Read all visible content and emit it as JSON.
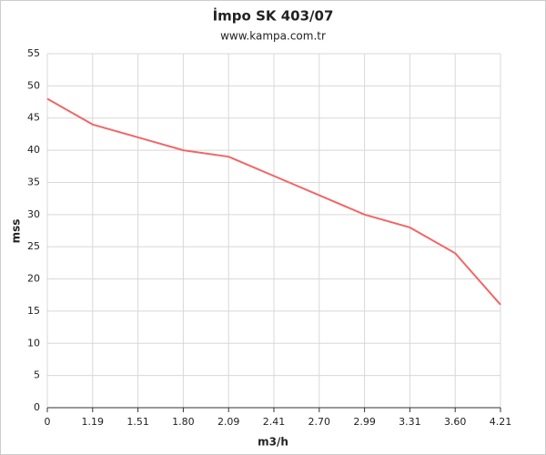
{
  "chart_data": {
    "type": "line",
    "title": "İmpo SK 403/07",
    "subtitle": "www.kampa.com.tr",
    "x_label": "m3/h",
    "y_label": "mss",
    "categories": [
      "0",
      "1.19",
      "1.51",
      "1.80",
      "2.09",
      "2.41",
      "2.70",
      "2.99",
      "3.31",
      "3.60",
      "4.21"
    ],
    "values": [
      48,
      44,
      42,
      40,
      39,
      36,
      33,
      30,
      28,
      24,
      16
    ],
    "color": "#f26666",
    "ylim": [
      0,
      55
    ],
    "yticks": [
      0,
      5,
      10,
      15,
      20,
      25,
      30,
      35,
      40,
      45,
      50,
      55
    ],
    "grid": true
  }
}
